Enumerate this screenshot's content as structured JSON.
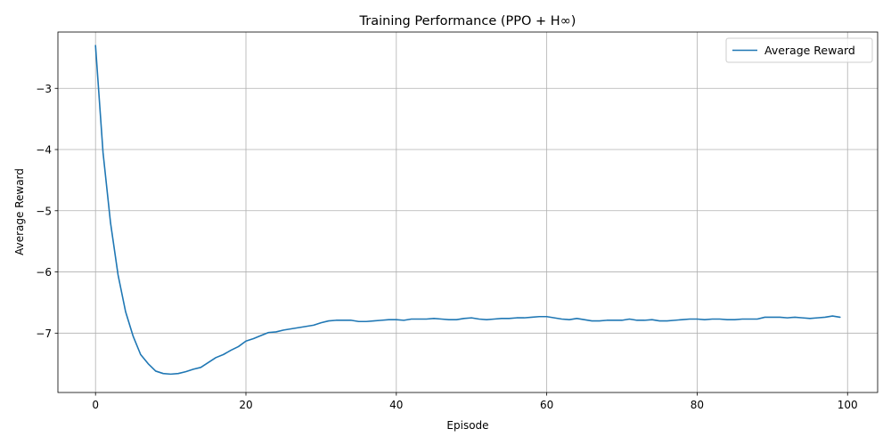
{
  "chart_data": {
    "type": "line",
    "title": "Training Performance (PPO + H∞)",
    "xlabel": "Episode",
    "ylabel": "Average Reward",
    "xlim": [
      -5,
      104
    ],
    "ylim": [
      -7.97,
      -2.08
    ],
    "xticks": [
      0,
      20,
      40,
      60,
      80,
      100
    ],
    "xtick_labels": [
      "0",
      "20",
      "40",
      "60",
      "80",
      "100"
    ],
    "yticks": [
      -7,
      -6,
      -5,
      -4,
      -3
    ],
    "ytick_labels": [
      "−7",
      "−6",
      "−5",
      "−4",
      "−3"
    ],
    "grid": true,
    "legend_position": "upper right",
    "series": [
      {
        "name": "Average Reward",
        "color": "#1f77b4",
        "x": [
          0,
          1,
          2,
          3,
          4,
          5,
          6,
          7,
          8,
          9,
          10,
          11,
          12,
          13,
          14,
          15,
          16,
          17,
          18,
          19,
          20,
          21,
          22,
          23,
          24,
          25,
          26,
          27,
          28,
          29,
          30,
          31,
          32,
          33,
          34,
          35,
          36,
          37,
          38,
          39,
          40,
          41,
          42,
          43,
          44,
          45,
          46,
          47,
          48,
          49,
          50,
          51,
          52,
          53,
          54,
          55,
          56,
          57,
          58,
          59,
          60,
          61,
          62,
          63,
          64,
          65,
          66,
          67,
          68,
          69,
          70,
          71,
          72,
          73,
          74,
          75,
          76,
          77,
          78,
          79,
          80,
          81,
          82,
          83,
          84,
          85,
          86,
          87,
          88,
          89,
          90,
          91,
          92,
          93,
          94,
          95,
          96,
          97,
          98,
          99
        ],
        "values": [
          -2.3,
          -4.05,
          -5.2,
          -6.05,
          -6.65,
          -7.05,
          -7.35,
          -7.5,
          -7.62,
          -7.66,
          -7.67,
          -7.66,
          -7.63,
          -7.59,
          -7.56,
          -7.48,
          -7.4,
          -7.35,
          -7.28,
          -7.22,
          -7.13,
          -7.09,
          -7.04,
          -6.99,
          -6.98,
          -6.95,
          -6.93,
          -6.91,
          -6.89,
          -6.87,
          -6.83,
          -6.8,
          -6.79,
          -6.79,
          -6.79,
          -6.81,
          -6.81,
          -6.8,
          -6.79,
          -6.78,
          -6.78,
          -6.79,
          -6.77,
          -6.77,
          -6.77,
          -6.76,
          -6.77,
          -6.78,
          -6.78,
          -6.76,
          -6.75,
          -6.77,
          -6.78,
          -6.77,
          -6.76,
          -6.76,
          -6.75,
          -6.75,
          -6.74,
          -6.73,
          -6.73,
          -6.75,
          -6.77,
          -6.78,
          -6.76,
          -6.78,
          -6.8,
          -6.8,
          -6.79,
          -6.79,
          -6.79,
          -6.77,
          -6.79,
          -6.79,
          -6.78,
          -6.8,
          -6.8,
          -6.79,
          -6.78,
          -6.77,
          -6.77,
          -6.78,
          -6.77,
          -6.77,
          -6.78,
          -6.78,
          -6.77,
          -6.77,
          -6.77,
          -6.74,
          -6.74,
          -6.74,
          -6.75,
          -6.74,
          -6.75,
          -6.76,
          -6.75,
          -6.74,
          -6.72,
          -6.74
        ]
      }
    ]
  }
}
